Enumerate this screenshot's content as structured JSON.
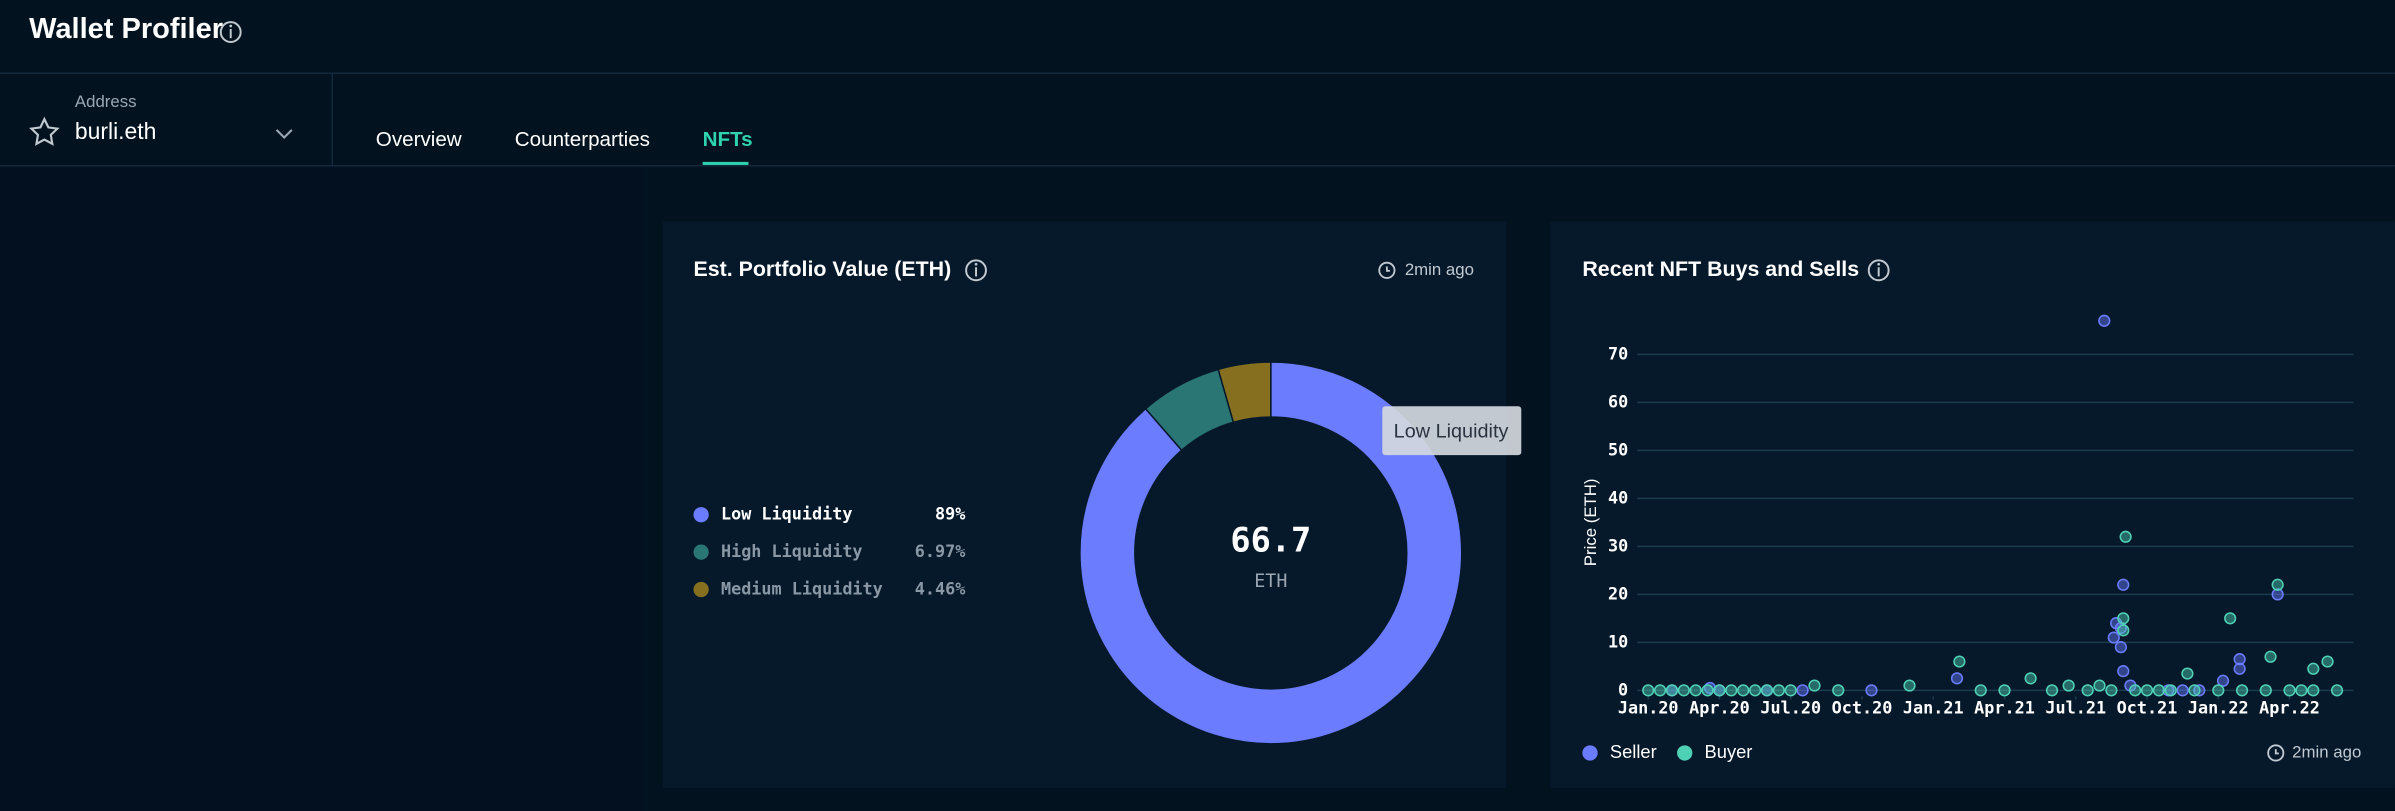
{
  "header": {
    "title": "Wallet Profiler"
  },
  "address": {
    "label": "Address",
    "value": "burli.eth"
  },
  "tabs": [
    "Overview",
    "Counterparties",
    "NFTs"
  ],
  "portfolio": {
    "title": "Est. Portfolio Value (ETH)",
    "updated": "2min ago",
    "center_value": "66.7",
    "center_unit": "ETH",
    "tooltip": "Low Liquidity",
    "chart": {
      "type": "pie",
      "categories": [
        "Low Liquidity",
        "High Liquidity",
        "Medium Liquidity"
      ],
      "values": [
        89,
        6.97,
        4.46
      ],
      "value_labels": [
        "89%",
        "6.97%",
        "4.46%"
      ],
      "colors": [
        "#6b7cff",
        "#2a7675",
        "#86701f"
      ]
    }
  },
  "nft": {
    "title": "Recent NFT Buys and Sells",
    "updated": "2min ago",
    "chart": {
      "type": "scatter",
      "y_label": "Price (ETH)",
      "xlim": [
        -1.1,
        29.7
      ],
      "ylim": [
        -2,
        80
      ],
      "xticks": [
        {
          "value": 0,
          "label": "Jan.20"
        },
        {
          "value": 3,
          "label": "Apr.20"
        },
        {
          "value": 6,
          "label": "Jul.20"
        },
        {
          "value": 9,
          "label": "Oct.20"
        },
        {
          "value": 12,
          "label": "Jan.21"
        },
        {
          "value": 15,
          "label": "Apr.21"
        },
        {
          "value": 18,
          "label": "Jul.21"
        },
        {
          "value": 21,
          "label": "Oct.21"
        },
        {
          "value": 24,
          "label": "Jan.22"
        },
        {
          "value": 27,
          "label": "Apr.22"
        }
      ],
      "yticks": [
        0,
        10,
        20,
        30,
        40,
        50,
        60,
        70
      ],
      "grid": true,
      "series": [
        {
          "name": "Seller",
          "color": "#6b7cff",
          "x": [
            19.2,
            20.0,
            19.9,
            19.9,
            19.6,
            19.7,
            20.0,
            13.0,
            24.9,
            24.9,
            26.5,
            2.6,
            6.5,
            9.4,
            24.2,
            21.9,
            23.2,
            1.0,
            3.0,
            5.0,
            20.3,
            22.5
          ],
          "values": [
            77,
            22,
            13,
            9,
            11,
            14,
            4,
            2.5,
            4.5,
            6.5,
            20,
            0.5,
            0,
            0,
            2,
            0,
            0,
            0,
            0,
            0,
            1,
            0
          ]
        },
        {
          "name": "Buyer",
          "color": "#4fd1b5",
          "x": [
            20.1,
            20.0,
            20.0,
            24.5,
            26.5,
            26.2,
            28.0,
            28.6,
            13.1,
            11.0,
            16.1,
            22.7,
            17.7,
            19.0,
            0,
            0.5,
            1,
            1.5,
            2,
            2.5,
            3,
            3.5,
            4,
            4.5,
            5,
            5.5,
            6,
            7,
            8,
            14,
            15,
            17,
            18.5,
            19.5,
            20.5,
            21,
            21.5,
            22,
            23,
            24,
            25,
            26,
            27,
            27.5,
            28,
            29
          ],
          "values": [
            32,
            15,
            12.5,
            15,
            22,
            7,
            4.5,
            6,
            6,
            1,
            2.5,
            3.5,
            1,
            1,
            0,
            0,
            0,
            0,
            0,
            0,
            0,
            0,
            0,
            0,
            0,
            0,
            0,
            1,
            0,
            0,
            0,
            0,
            0,
            0,
            0,
            0,
            0,
            0,
            0,
            0,
            0,
            0,
            0,
            0,
            0,
            0
          ]
        }
      ]
    }
  }
}
